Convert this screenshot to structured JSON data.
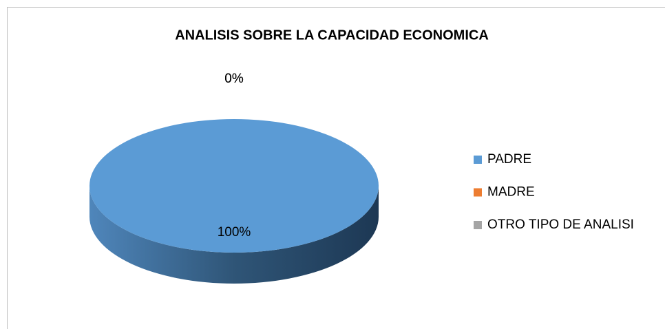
{
  "chart_data": {
    "type": "pie",
    "title": "ANALISIS SOBRE LA CAPACIDAD ECONOMICA",
    "categories": [
      "PADRE",
      "MADRE",
      "OTRO TIPO DE ANALISI"
    ],
    "values": [
      100,
      0,
      0
    ],
    "value_labels": [
      "100%",
      "0%",
      "0%"
    ],
    "colors": [
      "#5b9bd5",
      "#ed7d31",
      "#a5a5a5"
    ],
    "legend": "right"
  }
}
